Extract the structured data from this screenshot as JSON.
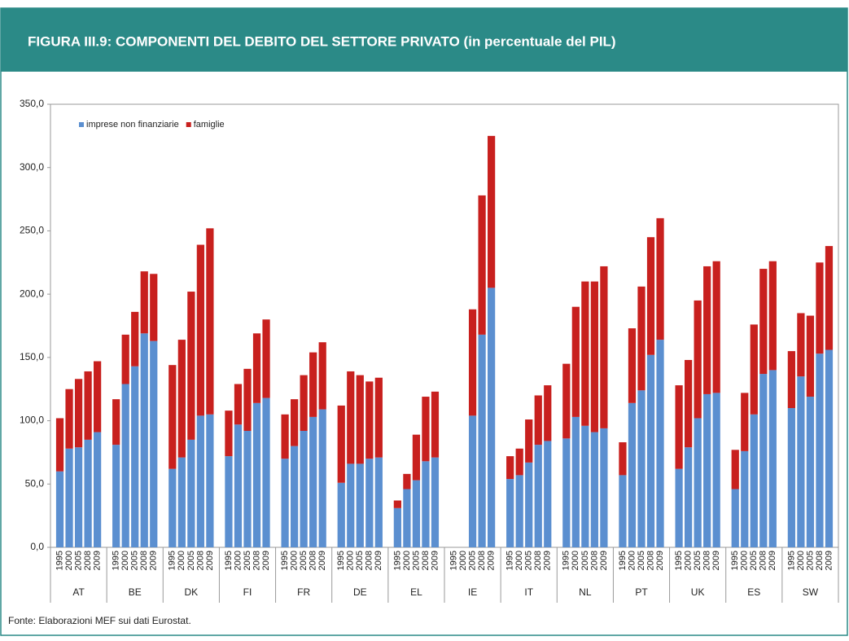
{
  "chart_data": {
    "type": "stacked_bar",
    "title": "FIGURA III.9: COMPONENTI DEL DEBITO DEL SETTORE PRIVATO (in percentuale del PIL)",
    "source": "Fonte: Elaborazioni MEF sui dati Eurostat.",
    "categories": [
      "AT",
      "BE",
      "DK",
      "FI",
      "FR",
      "DE",
      "EL",
      "IE",
      "IT",
      "NL",
      "PT",
      "UK",
      "ES",
      "SW"
    ],
    "subcategories": [
      "1995",
      "2000",
      "2005",
      "2008",
      "2009"
    ],
    "series": [
      {
        "name": "imprese non finanziarie",
        "color": "#5b8fd0",
        "values": [
          [
            60,
            78,
            79,
            85,
            91
          ],
          [
            81,
            129,
            143,
            169,
            163
          ],
          [
            62,
            71,
            85,
            104,
            105
          ],
          [
            72,
            97,
            92,
            114,
            118
          ],
          [
            70,
            80,
            92,
            103,
            109
          ],
          [
            51,
            66,
            66,
            70,
            71
          ],
          [
            31,
            46,
            53,
            68,
            71
          ],
          [
            null,
            null,
            104,
            168,
            205
          ],
          [
            54,
            57,
            67,
            81,
            84
          ],
          [
            86,
            103,
            96,
            91,
            94
          ],
          [
            57,
            114,
            124,
            152,
            164
          ],
          [
            62,
            79,
            102,
            121,
            122
          ],
          [
            46,
            76,
            105,
            137,
            140
          ],
          [
            110,
            135,
            119,
            153,
            156
          ]
        ]
      },
      {
        "name": "famiglie",
        "color": "#c8201e",
        "values": [
          [
            42,
            47,
            54,
            54,
            56
          ],
          [
            36,
            39,
            43,
            49,
            53
          ],
          [
            82,
            93,
            117,
            135,
            147
          ],
          [
            36,
            32,
            49,
            55,
            62
          ],
          [
            35,
            37,
            44,
            51,
            53
          ],
          [
            61,
            73,
            70,
            61,
            63
          ],
          [
            6,
            12,
            36,
            51,
            52
          ],
          [
            null,
            null,
            84,
            110,
            120
          ],
          [
            18,
            21,
            34,
            39,
            44
          ],
          [
            59,
            87,
            114,
            119,
            128
          ],
          [
            26,
            59,
            82,
            93,
            96
          ],
          [
            66,
            69,
            93,
            101,
            104
          ],
          [
            31,
            46,
            71,
            83,
            86
          ],
          [
            45,
            50,
            64,
            72,
            82
          ]
        ]
      }
    ],
    "ylim": [
      0,
      350
    ],
    "yticks": [
      {
        "value": 0,
        "label": "0,0"
      },
      {
        "value": 50,
        "label": "50,0"
      },
      {
        "value": 100,
        "label": "100,0"
      },
      {
        "value": 150,
        "label": "150,0"
      },
      {
        "value": 200,
        "label": "200,0"
      },
      {
        "value": 250,
        "label": "250,0"
      },
      {
        "value": 300,
        "label": "300,0"
      },
      {
        "value": 350,
        "label": "350,0"
      }
    ],
    "legend": "top-left"
  }
}
